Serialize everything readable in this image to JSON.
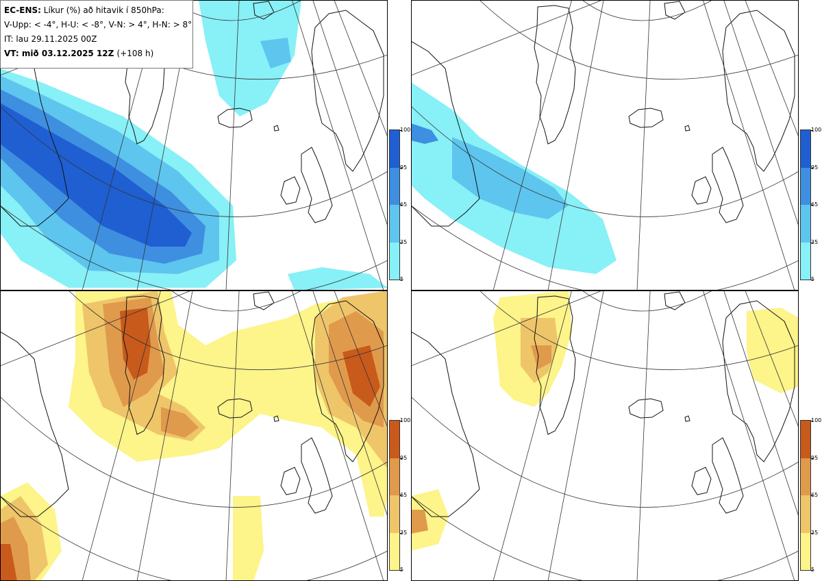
{
  "legend": {
    "model": "EC-ENS:",
    "description": "Líkur (%) að hitavik í 850hPa:",
    "thresholds": "V-Upp: < -4°, H-U: < -8°, V-N: > 4°, H-N: > 8°",
    "init_time": "IT: lau 29.11.2025 00Z",
    "valid_label": "VT:",
    "valid_time": "mið 03.12.2025 12Z",
    "lead": "(+108 h)"
  },
  "panels": [
    {
      "id": "cold-4",
      "label": "V-Upp",
      "palette": "blue"
    },
    {
      "id": "cold-8",
      "label": "H-U",
      "palette": "blue"
    },
    {
      "id": "warm-4",
      "label": "V-N",
      "palette": "yellow"
    },
    {
      "id": "warm-8",
      "label": "H-N",
      "palette": "yellow"
    }
  ],
  "colorbar": {
    "ticks": [
      "100",
      "95",
      "65",
      "35",
      "5"
    ],
    "blue_colors": [
      "#1f5fd1",
      "#3e8fe0",
      "#5ec5ee",
      "#88f0f7"
    ],
    "yellow_colors": [
      "#c85a1c",
      "#e09a4c",
      "#efc56a",
      "#fdf48a"
    ]
  },
  "colors": {
    "blue_levels": [
      "#88f0f7",
      "#5ec5ee",
      "#3e8fe0",
      "#1f5fd1"
    ],
    "yellow_levels": [
      "#fdf48a",
      "#efc56a",
      "#e09a4c",
      "#c85a1c"
    ],
    "coast": "#111111",
    "grid": "#333333"
  }
}
